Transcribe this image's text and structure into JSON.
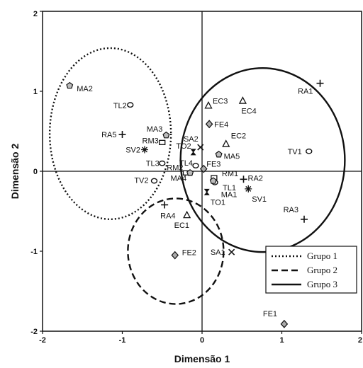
{
  "chart_data": {
    "type": "scatter",
    "title": "",
    "xlabel": "Dimensão 1",
    "ylabel": "Dimensão 2",
    "xlim": [
      -2,
      2
    ],
    "ylim": [
      -2,
      2
    ],
    "xticks": [
      "-2",
      "-1",
      "0",
      "1",
      "2"
    ],
    "yticks": [
      "-2",
      "-1",
      "0",
      "1",
      "2"
    ],
    "grid": false,
    "reference_lines": [
      0,
      0
    ],
    "points": [
      {
        "label": "MA2",
        "x": -1.66,
        "y": 1.07,
        "marker": "pentagon"
      },
      {
        "label": "TL2",
        "x": -0.9,
        "y": 0.83,
        "marker": "circle"
      },
      {
        "label": "RA5",
        "x": -1.0,
        "y": 0.46,
        "marker": "plus"
      },
      {
        "label": "MA3",
        "x": -0.45,
        "y": 0.45,
        "marker": "pentagon"
      },
      {
        "label": "RM3",
        "x": -0.5,
        "y": 0.36,
        "marker": "square"
      },
      {
        "label": "SV2",
        "x": -0.72,
        "y": 0.27,
        "marker": "star"
      },
      {
        "label": "TL3",
        "x": -0.5,
        "y": 0.1,
        "marker": "circle"
      },
      {
        "label": "TV2",
        "x": -0.6,
        "y": -0.12,
        "marker": "circle"
      },
      {
        "label": "SA2",
        "x": -0.02,
        "y": 0.3,
        "marker": "x"
      },
      {
        "label": "TO2",
        "x": -0.11,
        "y": 0.24,
        "marker": "hourglass"
      },
      {
        "label": "TL4",
        "x": -0.08,
        "y": 0.07,
        "marker": "circle"
      },
      {
        "label": "FE3",
        "x": 0.02,
        "y": 0.03,
        "marker": "diamond"
      },
      {
        "label": "RM2",
        "x": -0.2,
        "y": -0.02,
        "marker": "square"
      },
      {
        "label": "MA4",
        "x": -0.15,
        "y": -0.02,
        "marker": "pentagon"
      },
      {
        "label": "EC3",
        "x": 0.08,
        "y": 0.82,
        "marker": "triangle"
      },
      {
        "label": "EC4",
        "x": 0.51,
        "y": 0.88,
        "marker": "triangle"
      },
      {
        "label": "FE4",
        "x": 0.09,
        "y": 0.59,
        "marker": "diamond"
      },
      {
        "label": "EC2",
        "x": 0.3,
        "y": 0.34,
        "marker": "triangle"
      },
      {
        "label": "MA5",
        "x": 0.21,
        "y": 0.21,
        "marker": "pentagon"
      },
      {
        "label": "RA1",
        "x": 1.48,
        "y": 1.1,
        "marker": "plus"
      },
      {
        "label": "TV1",
        "x": 1.34,
        "y": 0.25,
        "marker": "circle"
      },
      {
        "label": "RM1",
        "x": 0.15,
        "y": -0.08,
        "marker": "square"
      },
      {
        "label": "TL1",
        "x": 0.16,
        "y": -0.14,
        "marker": "circle"
      },
      {
        "label": "TO1",
        "x": 0.06,
        "y": -0.26,
        "marker": "hourglass"
      },
      {
        "label": "MA1",
        "x": 0.14,
        "y": -0.12,
        "marker": "pentagon"
      },
      {
        "label": "RA2",
        "x": 0.52,
        "y": -0.1,
        "marker": "plus"
      },
      {
        "label": "SV1",
        "x": 0.58,
        "y": -0.22,
        "marker": "star"
      },
      {
        "label": "RA3",
        "x": 1.28,
        "y": -0.6,
        "marker": "plus"
      },
      {
        "label": "RA4",
        "x": -0.47,
        "y": -0.42,
        "marker": "plus"
      },
      {
        "label": "EC1",
        "x": -0.19,
        "y": -0.55,
        "marker": "triangle"
      },
      {
        "label": "FE2",
        "x": -0.34,
        "y": -1.05,
        "marker": "diamond"
      },
      {
        "label": "SA1",
        "x": 0.37,
        "y": -1.01,
        "marker": "x"
      },
      {
        "label": "FE1",
        "x": 1.03,
        "y": -1.91,
        "marker": "diamond"
      }
    ],
    "groups": [
      {
        "name": "Grupo 1",
        "style": "dotted",
        "cx": -1.15,
        "cy": 0.47,
        "rx": 0.76,
        "ry": 1.07
      },
      {
        "name": "Grupo 2",
        "style": "dashed",
        "cx": -0.33,
        "cy": -1.0,
        "rx": 0.6,
        "ry": 0.66
      },
      {
        "name": "Grupo 3",
        "style": "solid",
        "cx": 0.76,
        "cy": 0.14,
        "rx": 1.03,
        "ry": 1.15
      }
    ],
    "legend": [
      "Grupo 1",
      "Grupo 2",
      "Grupo 3"
    ],
    "legend_position": "lower-right"
  }
}
